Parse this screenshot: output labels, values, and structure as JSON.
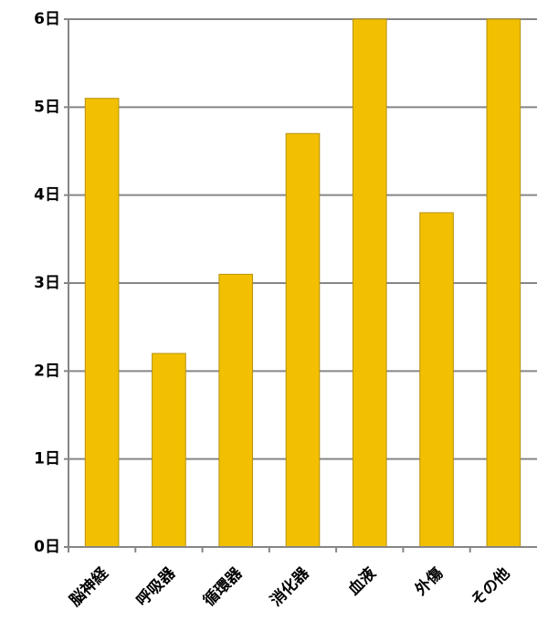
{
  "chart_data": {
    "type": "bar",
    "categories": [
      "脳神経",
      "呼吸器",
      "循環器",
      "消化器",
      "血液",
      "外傷",
      "その他"
    ],
    "values": [
      5.1,
      2.2,
      3.1,
      4.7,
      6.0,
      3.8,
      6.0
    ],
    "y_ticks": [
      {
        "value": 0,
        "label": "0日"
      },
      {
        "value": 1,
        "label": "1日"
      },
      {
        "value": 2,
        "label": "2日"
      },
      {
        "value": 3,
        "label": "3日"
      },
      {
        "value": 4,
        "label": "4日"
      },
      {
        "value": 5,
        "label": "5日"
      },
      {
        "value": 6,
        "label": "6日"
      }
    ],
    "ylim": [
      0,
      6
    ],
    "grid": true,
    "title": "",
    "xlabel": "",
    "ylabel": "",
    "colors": {
      "bar_fill": "#F2C000",
      "bar_stroke": "#B8920A",
      "gridline": "#868686",
      "axis": "#868686"
    }
  }
}
